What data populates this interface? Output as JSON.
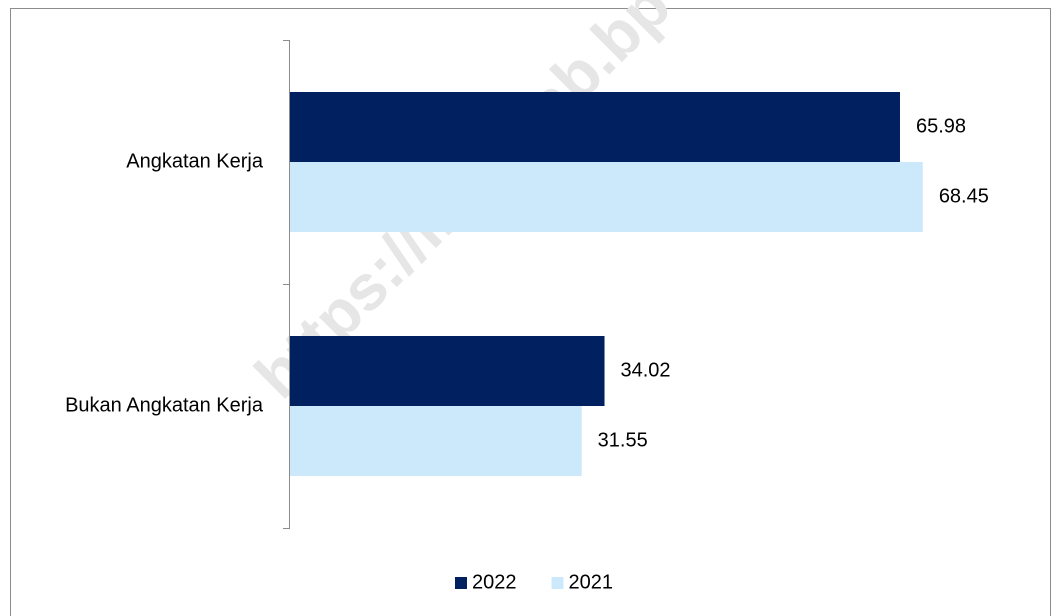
{
  "chart_data": {
    "type": "bar",
    "orientation": "horizontal",
    "watermark": "https://inhukab.bp",
    "categories": [
      "Angkatan Kerja",
      "Bukan Angkatan Kerja"
    ],
    "series": [
      {
        "name": "2022",
        "color": "#002060",
        "values": [
          65.98,
          34.02
        ]
      },
      {
        "name": "2021",
        "color": "#cce9fb",
        "values": [
          68.45,
          31.55
        ]
      }
    ],
    "legend": "bottom"
  }
}
